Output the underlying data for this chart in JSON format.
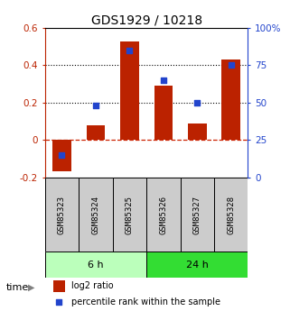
{
  "title": "GDS1929 / 10218",
  "samples": [
    "GSM85323",
    "GSM85324",
    "GSM85325",
    "GSM85326",
    "GSM85327",
    "GSM85328"
  ],
  "log2_ratio": [
    -0.17,
    0.08,
    0.53,
    0.29,
    0.09,
    0.43
  ],
  "percentile_rank": [
    15,
    48,
    85,
    65,
    50,
    75
  ],
  "left_ylim": [
    -0.2,
    0.6
  ],
  "right_ylim": [
    0,
    100
  ],
  "left_yticks": [
    -0.2,
    0,
    0.2,
    0.4,
    0.6
  ],
  "right_yticks": [
    0,
    25,
    50,
    75,
    100
  ],
  "right_yticklabels": [
    "0",
    "25",
    "50",
    "75",
    "100%"
  ],
  "bar_color": "#bb2200",
  "dot_color": "#2244cc",
  "time_groups": [
    {
      "label": "6 h",
      "indices": [
        0,
        1,
        2
      ],
      "color": "#bbffbb"
    },
    {
      "label": "24 h",
      "indices": [
        3,
        4,
        5
      ],
      "color": "#33dd33"
    }
  ],
  "sample_box_color": "#cccccc",
  "dotted_line_y": [
    0.2,
    0.4
  ],
  "zero_line_color": "#cc2200",
  "legend_log2": "log2 ratio",
  "legend_pct": "percentile rank within the sample",
  "time_label": "time",
  "title_fontsize": 10,
  "tick_fontsize": 7.5,
  "sample_fontsize": 6.5,
  "legend_fontsize": 7
}
